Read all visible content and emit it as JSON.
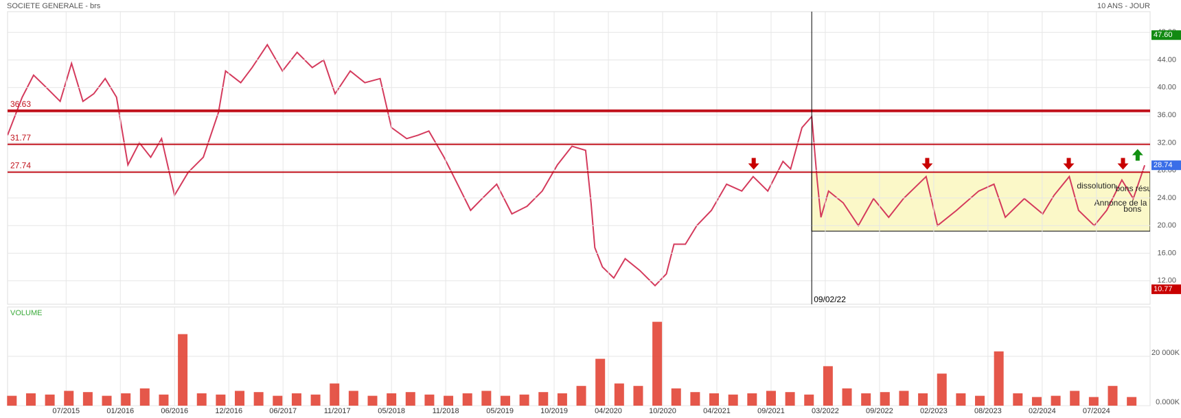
{
  "chart_data": {
    "type": "line",
    "title": "SOCIETE GENERALE - brs",
    "subtitle": "10 ANS - JOUR",
    "volume_label": "VOLUME",
    "xlim": [
      -1.08,
      19.99
    ],
    "xticks": [
      {
        "value": 0,
        "label": "07/2015"
      },
      {
        "value": 1,
        "label": "01/2016"
      },
      {
        "value": 2,
        "label": "06/2016"
      },
      {
        "value": 3,
        "label": "12/2016"
      },
      {
        "value": 4,
        "label": "06/2017"
      },
      {
        "value": 5,
        "label": "11/2017"
      },
      {
        "value": 6,
        "label": "05/2018"
      },
      {
        "value": 7,
        "label": "11/2018"
      },
      {
        "value": 8,
        "label": "05/2019"
      },
      {
        "value": 9,
        "label": "10/2019"
      },
      {
        "value": 10,
        "label": "04/2020"
      },
      {
        "value": 11,
        "label": "10/2020"
      },
      {
        "value": 12,
        "label": "04/2021"
      },
      {
        "value": 13,
        "label": "09/2021"
      },
      {
        "value": 14,
        "label": "03/2022"
      },
      {
        "value": 15,
        "label": "09/2022"
      },
      {
        "value": 16,
        "label": "02/2023"
      },
      {
        "value": 17,
        "label": "08/2023"
      },
      {
        "value": 18,
        "label": "02/2024"
      },
      {
        "value": 19,
        "label": "07/2024"
      }
    ],
    "ylim": [
      8.6,
      51
    ],
    "yticks": [
      {
        "value": 12,
        "label": "12.00"
      },
      {
        "value": 16,
        "label": "16.00"
      },
      {
        "value": 20,
        "label": "20.00"
      },
      {
        "value": 24,
        "label": "24.00"
      },
      {
        "value": 28,
        "label": "28.00"
      },
      {
        "value": 32,
        "label": "32.00"
      },
      {
        "value": 36,
        "label": "36.00"
      },
      {
        "value": 40,
        "label": "40.00"
      },
      {
        "value": 44,
        "label": "44.00"
      },
      {
        "value": 48,
        "label": "48.00"
      }
    ],
    "grid": true,
    "series": [
      {
        "color": "#d43a5c",
        "x": [
          -1.08,
          -0.81,
          -0.6,
          -0.39,
          -0.11,
          0.1,
          0.31,
          0.51,
          0.72,
          0.93,
          1.14,
          1.35,
          1.56,
          1.76,
          2.0,
          2.25,
          2.53,
          2.81,
          2.94,
          3.22,
          3.43,
          3.71,
          3.99,
          4.26,
          4.54,
          4.75,
          4.96,
          5.24,
          5.51,
          5.79,
          6.0,
          6.28,
          6.49,
          6.69,
          6.97,
          7.25,
          7.46,
          7.67,
          7.94,
          8.22,
          8.5,
          8.78,
          9.06,
          9.33,
          9.58,
          9.68,
          9.75,
          9.89,
          10.1,
          10.31,
          10.58,
          10.86,
          11.07,
          11.21,
          11.42,
          11.63,
          11.9,
          12.18,
          12.46,
          12.67,
          12.94,
          13.22,
          13.36,
          13.57,
          13.75,
          13.85,
          13.92,
          14.06,
          14.33,
          14.61,
          14.89,
          15.17,
          15.44,
          15.86,
          16.07,
          16.42,
          16.83,
          17.11,
          17.32,
          17.67,
          18.01,
          18.22,
          18.5,
          18.67,
          18.96,
          19.19,
          19.47,
          19.68,
          19.89
        ],
        "values": [
          33.1,
          38.6,
          41.8,
          40.2,
          38,
          43.5,
          38,
          39.1,
          41.3,
          38.6,
          28.8,
          32,
          29.9,
          32.6,
          24.4,
          27.7,
          29.9,
          36.4,
          42.4,
          40.7,
          42.9,
          46.2,
          42.4,
          45.1,
          42.9,
          44,
          39.1,
          42.4,
          40.7,
          41.3,
          34.2,
          32.6,
          33.1,
          33.7,
          29.9,
          25.5,
          22.2,
          23.9,
          26,
          21.7,
          22.8,
          25,
          28.8,
          31.5,
          30.9,
          23.3,
          16.8,
          14,
          12.4,
          15.2,
          13.5,
          11.3,
          13,
          17.3,
          17.3,
          20,
          22.2,
          26,
          25,
          27.1,
          25,
          29.3,
          28.2,
          34.2,
          35.8,
          26.6,
          21.2,
          25,
          23.3,
          20,
          23.9,
          21.2,
          23.9,
          27.1,
          20,
          22.2,
          25,
          26,
          21.2,
          23.9,
          21.7,
          24.4,
          27.1,
          22.2,
          20,
          22.2,
          26.6,
          23.9,
          28.74
        ]
      }
    ],
    "volume": {
      "color": "#e03a2a",
      "ylim": [
        0,
        40000
      ],
      "yticks": [
        {
          "value": 0,
          "label": "0.000K"
        },
        {
          "value": 20000,
          "label": "20 000K"
        }
      ],
      "x": [
        -1.0,
        -0.65,
        -0.3,
        0.05,
        0.4,
        0.75,
        1.1,
        1.45,
        1.8,
        2.15,
        2.5,
        2.85,
        3.2,
        3.55,
        3.9,
        4.25,
        4.6,
        4.95,
        5.3,
        5.65,
        6.0,
        6.35,
        6.7,
        7.05,
        7.4,
        7.75,
        8.1,
        8.45,
        8.8,
        9.15,
        9.5,
        9.85,
        10.2,
        10.55,
        10.9,
        11.25,
        11.6,
        11.95,
        12.3,
        12.65,
        13.0,
        13.35,
        13.7,
        14.05,
        14.4,
        14.75,
        15.1,
        15.45,
        15.8,
        16.15,
        16.5,
        16.85,
        17.2,
        17.55,
        17.9,
        18.25,
        18.6,
        18.95,
        19.3,
        19.65
      ],
      "values": [
        4000,
        5000,
        4500,
        6000,
        5500,
        4000,
        5000,
        7000,
        4500,
        29000,
        5000,
        4500,
        6000,
        5500,
        4000,
        5000,
        4500,
        9000,
        6000,
        4000,
        5000,
        5500,
        4500,
        4000,
        5000,
        6000,
        4000,
        4500,
        5500,
        5000,
        8000,
        19000,
        9000,
        8000,
        34000,
        7000,
        5500,
        5000,
        4500,
        5000,
        6000,
        5500,
        4500,
        16000,
        7000,
        5000,
        5500,
        6000,
        5000,
        13000,
        5000,
        4000,
        22000,
        5000,
        3500,
        4000,
        6000,
        3500,
        8000,
        3500
      ]
    },
    "levels": [
      {
        "value": 36.63,
        "label": "36.63",
        "width": 4
      },
      {
        "value": 31.77,
        "label": "31.77",
        "width": 2
      },
      {
        "value": 27.74,
        "label": "27.74",
        "width": 2
      }
    ],
    "price_tags": [
      {
        "value": 47.6,
        "label": "47.60",
        "color": "#128a12"
      },
      {
        "value": 28.74,
        "label": "28.74",
        "color": "#3a6ee8"
      },
      {
        "value": 10.77,
        "label": "10.77",
        "color": "#c80000"
      }
    ],
    "marker": {
      "x": 13.75,
      "label": "09/02/22"
    },
    "zone": {
      "x": [
        13.75,
        19.99
      ],
      "y": [
        19.2,
        27.74
      ]
    },
    "arrows": [
      {
        "x": 12.68,
        "y": 29.0,
        "dir": "down"
      },
      {
        "x": 15.88,
        "y": 29.0,
        "dir": "down"
      },
      {
        "x": 18.49,
        "y": 29.0,
        "dir": "down"
      },
      {
        "x": 19.49,
        "y": 29.0,
        "dir": "down"
      },
      {
        "x": 19.76,
        "y": 30.2,
        "dir": "up"
      }
    ],
    "annotations": [
      {
        "x": 18.64,
        "y": 25.7,
        "text": "dissolution"
      },
      {
        "x": 19.35,
        "y": 25.3,
        "text": "bons résultats"
      },
      {
        "x": 18.96,
        "y": 23.2,
        "text": "Annonce de la"
      },
      {
        "x": 19.5,
        "y": 22.3,
        "text": "bons"
      }
    ]
  }
}
